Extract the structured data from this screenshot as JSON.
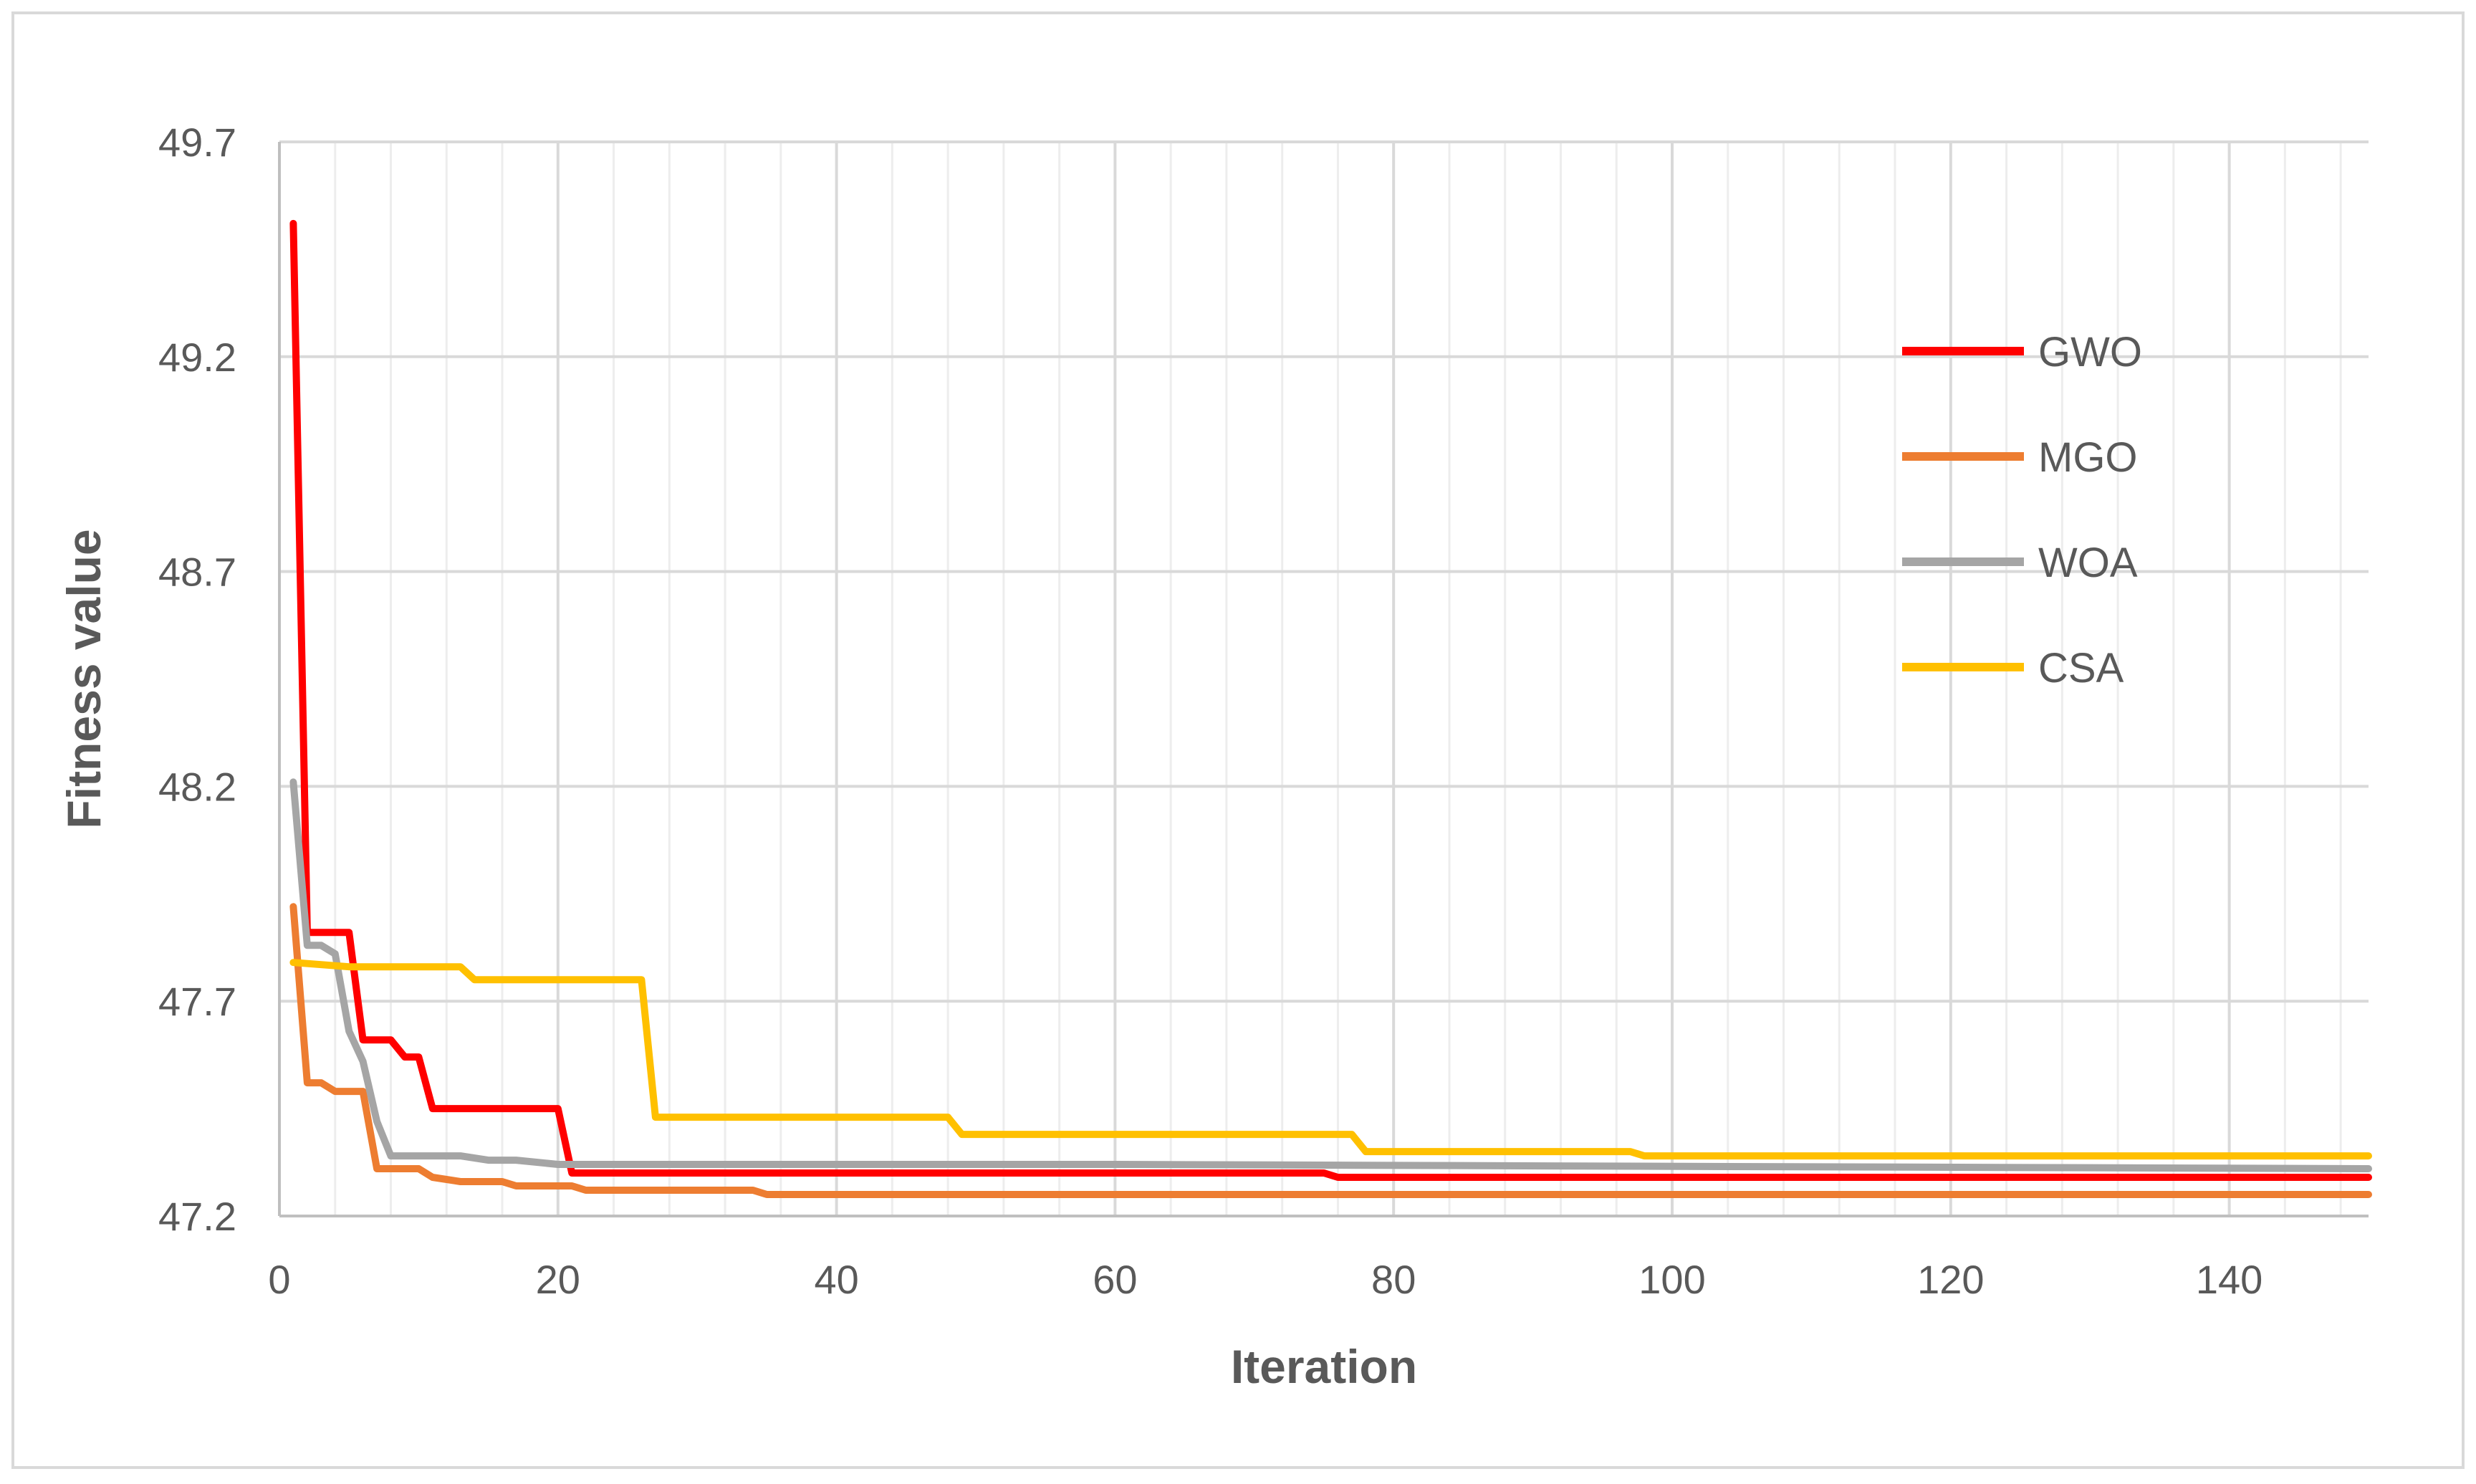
{
  "chart_data": {
    "type": "line",
    "title": "",
    "xlabel": "Iteration",
    "ylabel": "Fitness value",
    "xlim": [
      0,
      150
    ],
    "ylim": [
      47.2,
      49.7
    ],
    "x_ticks": [
      "0",
      "20",
      "40",
      "60",
      "80",
      "100",
      "120",
      "140"
    ],
    "y_ticks": [
      "47.2",
      "47.7",
      "48.2",
      "48.7",
      "49.2",
      "49.7"
    ],
    "grid": true,
    "legend_position": "right",
    "series": [
      {
        "name": "GWO",
        "color": "#ff0000",
        "points": [
          [
            1,
            49.51
          ],
          [
            2,
            47.86
          ],
          [
            5,
            47.86
          ],
          [
            6,
            47.61
          ],
          [
            8,
            47.61
          ],
          [
            9,
            47.57
          ],
          [
            10,
            47.57
          ],
          [
            11,
            47.45
          ],
          [
            20,
            47.45
          ],
          [
            21,
            47.3
          ],
          [
            75,
            47.3
          ],
          [
            76,
            47.29
          ],
          [
            150,
            47.29
          ]
        ]
      },
      {
        "name": "MGO",
        "color": "#ed7d31",
        "points": [
          [
            1,
            47.92
          ],
          [
            2,
            47.51
          ],
          [
            3,
            47.51
          ],
          [
            4,
            47.49
          ],
          [
            6,
            47.49
          ],
          [
            7,
            47.31
          ],
          [
            10,
            47.31
          ],
          [
            11,
            47.29
          ],
          [
            13,
            47.28
          ],
          [
            16,
            47.28
          ],
          [
            17,
            47.27
          ],
          [
            21,
            47.27
          ],
          [
            22,
            47.26
          ],
          [
            34,
            47.26
          ],
          [
            35,
            47.25
          ],
          [
            150,
            47.25
          ]
        ]
      },
      {
        "name": "WOA",
        "color": "#a5a5a5",
        "points": [
          [
            1,
            48.21
          ],
          [
            2,
            47.83
          ],
          [
            3,
            47.83
          ],
          [
            4,
            47.81
          ],
          [
            5,
            47.63
          ],
          [
            6,
            47.56
          ],
          [
            7,
            47.42
          ],
          [
            8,
            47.34
          ],
          [
            13,
            47.34
          ],
          [
            15,
            47.33
          ],
          [
            17,
            47.33
          ],
          [
            20,
            47.32
          ],
          [
            60,
            47.32
          ],
          [
            150,
            47.31
          ]
        ]
      },
      {
        "name": "CSA",
        "color": "#ffc000",
        "points": [
          [
            1,
            47.79
          ],
          [
            5,
            47.78
          ],
          [
            13,
            47.78
          ],
          [
            14,
            47.75
          ],
          [
            26,
            47.75
          ],
          [
            27,
            47.43
          ],
          [
            48,
            47.43
          ],
          [
            49,
            47.39
          ],
          [
            77,
            47.39
          ],
          [
            78,
            47.35
          ],
          [
            97,
            47.35
          ],
          [
            98,
            47.34
          ],
          [
            150,
            47.34
          ]
        ]
      }
    ]
  }
}
